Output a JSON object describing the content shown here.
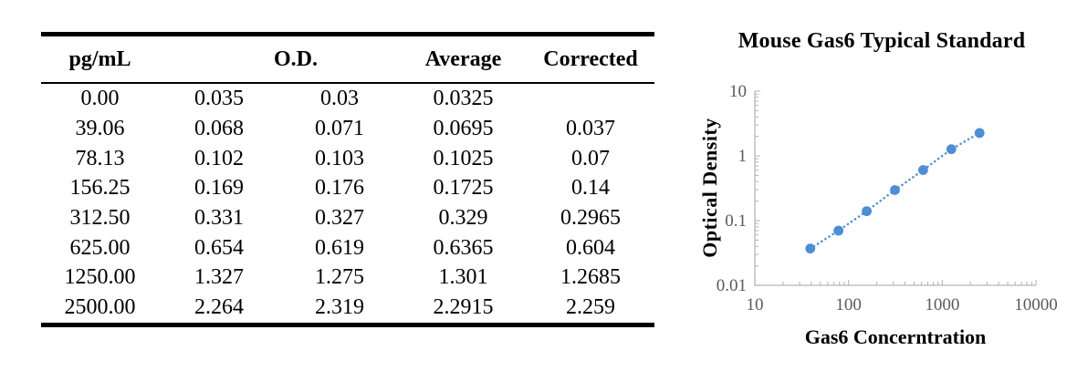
{
  "table": {
    "headers": {
      "concentration": "pg/mL",
      "od": "O.D.",
      "average": "Average",
      "corrected": "Corrected"
    },
    "rows": [
      [
        "0.00",
        "0.035",
        "0.03",
        "0.0325",
        ""
      ],
      [
        "39.06",
        "0.068",
        "0.071",
        "0.0695",
        "0.037"
      ],
      [
        "78.13",
        "0.102",
        "0.103",
        "0.1025",
        "0.07"
      ],
      [
        "156.25",
        "0.169",
        "0.176",
        "0.1725",
        "0.14"
      ],
      [
        "312.50",
        "0.331",
        "0.327",
        "0.329",
        "0.2965"
      ],
      [
        "625.00",
        "0.654",
        "0.619",
        "0.6365",
        "0.604"
      ],
      [
        "1250.00",
        "1.327",
        "1.275",
        "1.301",
        "1.2685"
      ],
      [
        "2500.00",
        "2.264",
        "2.319",
        "2.2915",
        "2.259"
      ]
    ]
  },
  "chart_data": {
    "type": "scatter",
    "title": "Mouse Gas6 Typical Standard",
    "xlabel": "Gas6 Concerntration",
    "ylabel": "Optical Density",
    "x_scale": "log",
    "y_scale": "log",
    "xlim": [
      10,
      10000
    ],
    "ylim": [
      0.01,
      10
    ],
    "x_ticks": [
      10,
      100,
      1000,
      10000
    ],
    "y_ticks": [
      10,
      1,
      0.1,
      0.01
    ],
    "x": [
      39.06,
      78.13,
      156.25,
      312.5,
      625,
      1250,
      2500
    ],
    "y": [
      0.037,
      0.07,
      0.14,
      0.2965,
      0.604,
      1.2685,
      2.259
    ],
    "line_style": "dotted",
    "grid": false,
    "legend_position": "none",
    "marker_color": "#4e8ed3",
    "axis_color": "#b7b7b7",
    "tick_label_color": "#595959",
    "title_color": "#000000"
  }
}
